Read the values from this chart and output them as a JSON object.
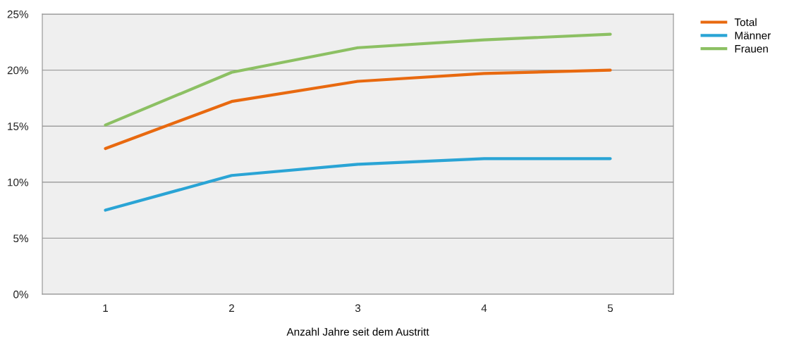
{
  "chart_data": {
    "type": "line",
    "xlabel": "Anzahl Jahre seit dem Austritt",
    "categories": [
      "1",
      "2",
      "3",
      "4",
      "5"
    ],
    "series": [
      {
        "name": "Total",
        "color": "#e8690f",
        "values": [
          13.0,
          17.2,
          19.0,
          19.7,
          20.0
        ]
      },
      {
        "name": "Männer",
        "color": "#2aa4d5",
        "values": [
          7.5,
          10.6,
          11.6,
          12.1,
          12.1
        ]
      },
      {
        "name": "Frauen",
        "color": "#8cc063",
        "values": [
          15.1,
          19.8,
          22.0,
          22.7,
          23.2
        ]
      }
    ],
    "ylim": [
      0,
      25
    ],
    "yticks": [
      {
        "value": 0,
        "label": "0%"
      },
      {
        "value": 5,
        "label": "5%"
      },
      {
        "value": 10,
        "label": "10%"
      },
      {
        "value": 15,
        "label": "15%"
      },
      {
        "value": 20,
        "label": "20%"
      },
      {
        "value": 25,
        "label": "25%"
      }
    ],
    "grid": "y",
    "legend": "top right",
    "marker": "none",
    "line_style": "solid"
  }
}
